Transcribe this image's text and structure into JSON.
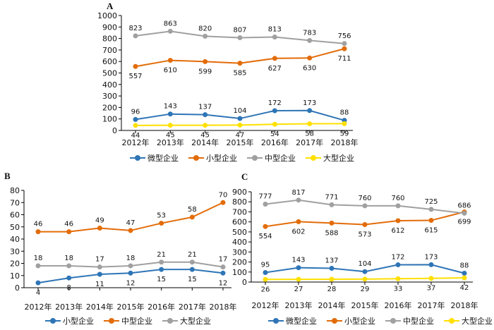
{
  "chart_data": [
    {
      "type": "line",
      "panel_label": "A",
      "categories": [
        "2012年",
        "2013年",
        "2014年",
        "2015年",
        "2016年",
        "2017年",
        "2018年"
      ],
      "ylim": [
        0,
        1000
      ],
      "yticks": [
        0,
        100,
        200,
        300,
        400,
        500,
        600,
        700,
        800,
        900,
        1000
      ],
      "series": [
        {
          "name": "微型企业",
          "color": "#2E75B6",
          "label_position": "above",
          "values": [
            96,
            143,
            137,
            104,
            172,
            173,
            88
          ]
        },
        {
          "name": "小型企业",
          "color": "#E36C09",
          "label_position": "below",
          "values": [
            557,
            610,
            599,
            585,
            627,
            630,
            711
          ]
        },
        {
          "name": "中型企业",
          "color": "#A0A0A0",
          "label_position": "above",
          "values": [
            823,
            863,
            820,
            807,
            813,
            783,
            756
          ]
        },
        {
          "name": "大型企业",
          "color": "#FFE000",
          "label_position": "below",
          "values": [
            44,
            45,
            45,
            47,
            54,
            58,
            59
          ]
        }
      ],
      "grid": false,
      "legend_position": "bottom"
    },
    {
      "type": "line",
      "panel_label": "B",
      "categories": [
        "2012年",
        "2013年",
        "2014年",
        "2015年",
        "2016年",
        "2017年",
        "2018年"
      ],
      "ylim": [
        0,
        80
      ],
      "yticks": [
        0,
        10,
        20,
        30,
        40,
        50,
        60,
        70,
        80
      ],
      "series": [
        {
          "name": "小型企业",
          "color": "#2E75B6",
          "label_position": "below",
          "values": [
            4,
            8,
            11,
            12,
            15,
            15,
            12
          ]
        },
        {
          "name": "中型企业",
          "color": "#E36C09",
          "label_position": "above",
          "values": [
            46,
            46,
            49,
            47,
            53,
            58,
            70
          ]
        },
        {
          "name": "大型企业",
          "color": "#A0A0A0",
          "label_position": "above",
          "values": [
            18,
            18,
            17,
            18,
            21,
            21,
            17
          ]
        }
      ],
      "grid": false,
      "legend_position": "bottom"
    },
    {
      "type": "line",
      "panel_label": "C",
      "categories": [
        "2012年",
        "2013年",
        "2014年",
        "2015年",
        "2016年",
        "2017年",
        "2018年"
      ],
      "ylim": [
        0,
        900
      ],
      "yticks": [
        0,
        100,
        200,
        300,
        400,
        500,
        600,
        700,
        800,
        900
      ],
      "series": [
        {
          "name": "微型企业",
          "color": "#2E75B6",
          "label_position": "above",
          "values": [
            95,
            143,
            137,
            104,
            172,
            173,
            88
          ]
        },
        {
          "name": "小型企业",
          "color": "#E36C09",
          "label_position": "below",
          "values": [
            554,
            602,
            588,
            573,
            612,
            615,
            699
          ]
        },
        {
          "name": "中型企业",
          "color": "#A0A0A0",
          "label_position": "above",
          "values": [
            777,
            817,
            771,
            760,
            760,
            725,
            686
          ]
        },
        {
          "name": "大型企业",
          "color": "#FFE000",
          "label_position": "below",
          "values": [
            26,
            27,
            28,
            29,
            33,
            37,
            42
          ]
        }
      ],
      "grid": false,
      "legend_position": "bottom"
    }
  ]
}
